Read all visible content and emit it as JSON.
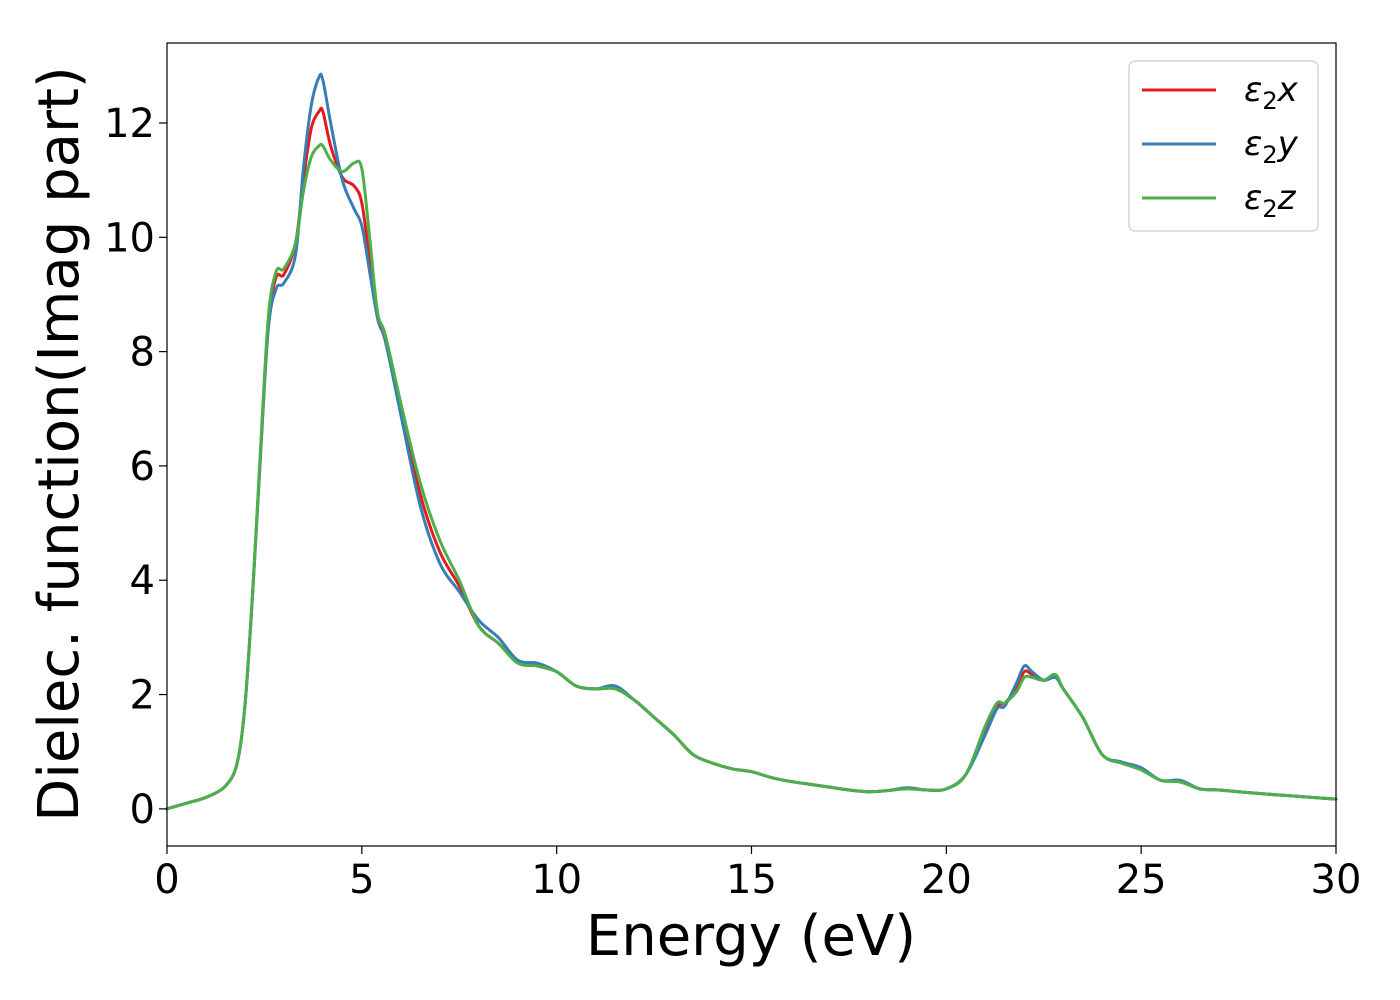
{
  "chart_data": {
    "type": "line",
    "xlabel": "Energy (eV)",
    "ylabel": "Dielec. function(Imag part)",
    "xlim": [
      0,
      30
    ],
    "ylim": [
      -0.65,
      13.4
    ],
    "x_ticks": [
      0,
      5,
      10,
      15,
      20,
      25,
      30
    ],
    "y_ticks": [
      0,
      2,
      4,
      6,
      8,
      10,
      12
    ],
    "grid": false,
    "legend_position": "top-right",
    "series": [
      {
        "name": "ε₂x",
        "label_base": "ε",
        "label_sub": "2",
        "label_var": "x",
        "color": "#e41a1c",
        "x": [
          0,
          0.5,
          1.0,
          1.5,
          1.8,
          2.0,
          2.2,
          2.4,
          2.6,
          2.8,
          3.0,
          3.3,
          3.5,
          3.7,
          3.9,
          4.0,
          4.2,
          4.5,
          4.8,
          5.0,
          5.2,
          5.4,
          5.6,
          6.0,
          6.5,
          7.0,
          7.5,
          8.0,
          8.5,
          9.0,
          9.5,
          10.0,
          10.5,
          11.0,
          11.5,
          12.0,
          12.5,
          13.0,
          13.5,
          14.0,
          14.5,
          15.0,
          15.5,
          16.0,
          16.5,
          17.0,
          17.5,
          18.0,
          18.5,
          19.0,
          19.5,
          20.0,
          20.5,
          21.0,
          21.3,
          21.5,
          21.8,
          22.0,
          22.2,
          22.5,
          22.8,
          23.0,
          23.5,
          24.0,
          24.5,
          25.0,
          25.5,
          26.0,
          26.5,
          27.0,
          28.0,
          29.0,
          30.0
        ],
        "y": [
          0.0,
          0.1,
          0.2,
          0.4,
          0.8,
          1.8,
          3.8,
          6.2,
          8.5,
          9.3,
          9.35,
          9.9,
          11.0,
          11.9,
          12.2,
          12.2,
          11.6,
          11.05,
          10.9,
          10.6,
          9.6,
          8.6,
          8.2,
          7.0,
          5.5,
          4.5,
          3.9,
          3.2,
          2.9,
          2.6,
          2.5,
          2.4,
          2.15,
          2.1,
          2.1,
          1.9,
          1.6,
          1.3,
          0.95,
          0.8,
          0.7,
          0.65,
          0.55,
          0.48,
          0.43,
          0.38,
          0.33,
          0.3,
          0.32,
          0.36,
          0.33,
          0.35,
          0.6,
          1.4,
          1.8,
          1.85,
          2.1,
          2.4,
          2.35,
          2.25,
          2.3,
          2.1,
          1.6,
          0.95,
          0.8,
          0.7,
          0.5,
          0.48,
          0.35,
          0.33,
          0.27,
          0.22,
          0.17
        ]
      },
      {
        "name": "ε₂y",
        "label_base": "ε",
        "label_sub": "2",
        "label_var": "y",
        "color": "#377eb8",
        "x": [
          0,
          0.5,
          1.0,
          1.5,
          1.8,
          2.0,
          2.2,
          2.4,
          2.6,
          2.8,
          3.0,
          3.3,
          3.5,
          3.7,
          3.9,
          4.0,
          4.2,
          4.5,
          4.8,
          5.0,
          5.2,
          5.4,
          5.6,
          6.0,
          6.5,
          7.0,
          7.5,
          8.0,
          8.5,
          9.0,
          9.5,
          10.0,
          10.5,
          11.0,
          11.5,
          12.0,
          12.5,
          13.0,
          13.5,
          14.0,
          14.5,
          15.0,
          15.5,
          16.0,
          16.5,
          17.0,
          17.5,
          18.0,
          18.5,
          19.0,
          19.5,
          20.0,
          20.5,
          21.0,
          21.3,
          21.5,
          21.8,
          22.0,
          22.2,
          22.5,
          22.8,
          23.0,
          23.5,
          24.0,
          24.5,
          25.0,
          25.5,
          26.0,
          26.5,
          27.0,
          28.0,
          29.0,
          30.0
        ],
        "y": [
          0.0,
          0.1,
          0.2,
          0.4,
          0.8,
          1.8,
          3.8,
          6.2,
          8.4,
          9.1,
          9.2,
          9.7,
          11.2,
          12.3,
          12.8,
          12.75,
          12.0,
          11.0,
          10.5,
          10.2,
          9.4,
          8.6,
          8.2,
          6.9,
          5.3,
          4.3,
          3.8,
          3.3,
          3.0,
          2.6,
          2.55,
          2.4,
          2.15,
          2.1,
          2.15,
          1.9,
          1.6,
          1.3,
          0.95,
          0.8,
          0.7,
          0.65,
          0.55,
          0.48,
          0.43,
          0.38,
          0.33,
          0.3,
          0.32,
          0.37,
          0.33,
          0.35,
          0.6,
          1.3,
          1.75,
          1.8,
          2.2,
          2.5,
          2.4,
          2.25,
          2.3,
          2.1,
          1.6,
          0.95,
          0.82,
          0.72,
          0.5,
          0.5,
          0.35,
          0.33,
          0.27,
          0.22,
          0.17
        ]
      },
      {
        "name": "ε₂z",
        "label_base": "ε",
        "label_sub": "2",
        "label_var": "z",
        "color": "#4daf4a",
        "x": [
          0,
          0.5,
          1.0,
          1.5,
          1.8,
          2.0,
          2.2,
          2.4,
          2.6,
          2.8,
          3.0,
          3.3,
          3.5,
          3.7,
          3.9,
          4.0,
          4.2,
          4.5,
          4.8,
          5.0,
          5.2,
          5.4,
          5.6,
          6.0,
          6.5,
          7.0,
          7.5,
          8.0,
          8.5,
          9.0,
          9.5,
          10.0,
          10.5,
          11.0,
          11.5,
          12.0,
          12.5,
          13.0,
          13.5,
          14.0,
          14.5,
          15.0,
          15.5,
          16.0,
          16.5,
          17.0,
          17.5,
          18.0,
          18.5,
          19.0,
          19.5,
          20.0,
          20.5,
          21.0,
          21.3,
          21.5,
          21.8,
          22.0,
          22.2,
          22.5,
          22.8,
          23.0,
          23.5,
          24.0,
          24.5,
          25.0,
          25.5,
          26.0,
          26.5,
          27.0,
          28.0,
          29.0,
          30.0
        ],
        "y": [
          0.0,
          0.1,
          0.2,
          0.4,
          0.8,
          1.8,
          3.8,
          6.3,
          8.6,
          9.4,
          9.45,
          9.9,
          10.8,
          11.4,
          11.6,
          11.6,
          11.35,
          11.15,
          11.3,
          11.2,
          10.0,
          8.7,
          8.3,
          7.1,
          5.7,
          4.7,
          4.0,
          3.2,
          2.9,
          2.55,
          2.5,
          2.4,
          2.15,
          2.1,
          2.1,
          1.9,
          1.6,
          1.3,
          0.95,
          0.8,
          0.7,
          0.65,
          0.55,
          0.48,
          0.43,
          0.38,
          0.33,
          0.3,
          0.32,
          0.35,
          0.33,
          0.35,
          0.6,
          1.45,
          1.85,
          1.85,
          2.05,
          2.3,
          2.3,
          2.25,
          2.35,
          2.1,
          1.6,
          0.95,
          0.8,
          0.68,
          0.5,
          0.47,
          0.35,
          0.33,
          0.27,
          0.22,
          0.17
        ]
      }
    ]
  }
}
